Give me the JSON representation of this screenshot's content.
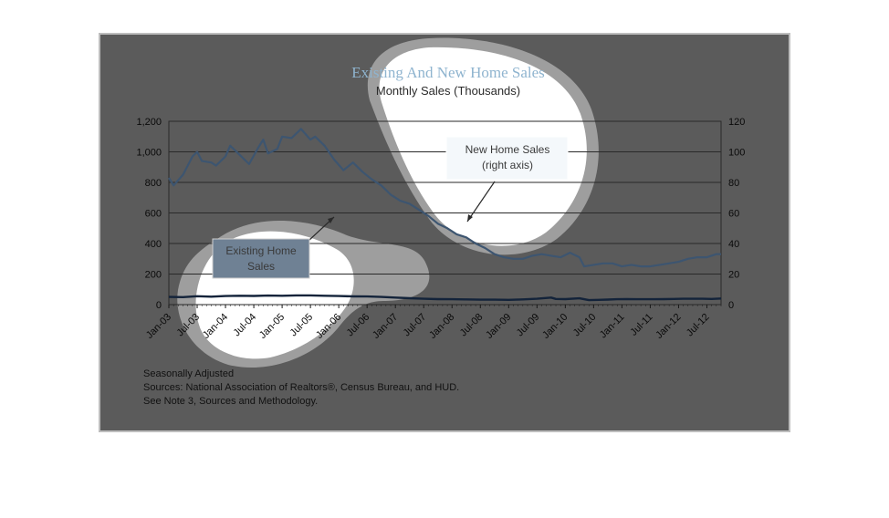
{
  "chart_data": {
    "type": "line",
    "title": "Existing And New Home Sales",
    "subtitle": "Monthly Sales (Thousands)",
    "x_tick_labels": [
      "Jan-03",
      "Jul-03",
      "Jan-04",
      "Jul-04",
      "Jan-05",
      "Jul-05",
      "Jan-06",
      "Jul-06",
      "Jan-07",
      "Jul-07",
      "Jan-08",
      "Jul-08",
      "Jan-09",
      "Jul-09",
      "Jan-10",
      "Jul-10",
      "Jan-11",
      "Jul-11",
      "Jan-12",
      "Jul-12"
    ],
    "y_left": {
      "min": 0,
      "max": 1200,
      "ticks": [
        "0",
        "200",
        "400",
        "600",
        "800",
        "1,000",
        "1,200"
      ]
    },
    "y_right": {
      "min": 0,
      "max": 120,
      "ticks": [
        "0",
        "20",
        "40",
        "60",
        "80",
        "100",
        "120"
      ]
    },
    "x_range_months": [
      0,
      117
    ],
    "grid": true,
    "series": [
      {
        "name": "Existing Home Sales",
        "axis": "left",
        "color": "#13233a",
        "points": [
          [
            0,
            50
          ],
          [
            3,
            49
          ],
          [
            6,
            55
          ],
          [
            9,
            52
          ],
          [
            12,
            56
          ],
          [
            15,
            58
          ],
          [
            18,
            57
          ],
          [
            21,
            59
          ],
          [
            24,
            58
          ],
          [
            27,
            60
          ],
          [
            30,
            60
          ],
          [
            33,
            58
          ],
          [
            36,
            56
          ],
          [
            39,
            54
          ],
          [
            42,
            53
          ],
          [
            45,
            50
          ],
          [
            48,
            46
          ],
          [
            51,
            42
          ],
          [
            54,
            38
          ],
          [
            57,
            36
          ],
          [
            60,
            35
          ],
          [
            63,
            34
          ],
          [
            66,
            32
          ],
          [
            69,
            32
          ],
          [
            72,
            31
          ],
          [
            75,
            34
          ],
          [
            78,
            38
          ],
          [
            81,
            46
          ],
          [
            82,
            37
          ],
          [
            84,
            36
          ],
          [
            87,
            41
          ],
          [
            89,
            29
          ],
          [
            91,
            31
          ],
          [
            93,
            33
          ],
          [
            95,
            35
          ],
          [
            97,
            36
          ],
          [
            99,
            35
          ],
          [
            101,
            35
          ],
          [
            103,
            35
          ],
          [
            105,
            36
          ],
          [
            107,
            37
          ],
          [
            109,
            38
          ],
          [
            111,
            38
          ],
          [
            113,
            38
          ],
          [
            115,
            37
          ],
          [
            117,
            40
          ]
        ]
      },
      {
        "name": "New Home Sales (right axis)",
        "axis": "right",
        "color": "#3d5570",
        "points": [
          [
            0,
            83
          ],
          [
            1,
            78
          ],
          [
            3,
            85
          ],
          [
            5,
            97
          ],
          [
            6,
            100
          ],
          [
            7,
            94
          ],
          [
            9,
            93
          ],
          [
            10,
            91
          ],
          [
            12,
            97
          ],
          [
            13,
            104
          ],
          [
            15,
            98
          ],
          [
            17,
            92
          ],
          [
            19,
            103
          ],
          [
            20,
            108
          ],
          [
            21,
            99
          ],
          [
            23,
            102
          ],
          [
            24,
            110
          ],
          [
            26,
            109
          ],
          [
            28,
            115
          ],
          [
            30,
            108
          ],
          [
            31,
            110
          ],
          [
            33,
            104
          ],
          [
            35,
            95
          ],
          [
            37,
            88
          ],
          [
            39,
            93
          ],
          [
            41,
            87
          ],
          [
            43,
            82
          ],
          [
            45,
            78
          ],
          [
            47,
            72
          ],
          [
            49,
            68
          ],
          [
            51,
            66
          ],
          [
            53,
            62
          ],
          [
            55,
            58
          ],
          [
            57,
            53
          ],
          [
            59,
            50
          ],
          [
            61,
            46
          ],
          [
            63,
            44
          ],
          [
            65,
            40
          ],
          [
            67,
            37
          ],
          [
            69,
            33
          ],
          [
            71,
            31
          ],
          [
            73,
            30
          ],
          [
            75,
            30
          ],
          [
            77,
            32
          ],
          [
            79,
            33
          ],
          [
            81,
            32
          ],
          [
            83,
            31
          ],
          [
            85,
            34
          ],
          [
            87,
            31
          ],
          [
            88,
            25
          ],
          [
            90,
            26
          ],
          [
            92,
            27
          ],
          [
            94,
            27
          ],
          [
            96,
            25
          ],
          [
            98,
            26
          ],
          [
            100,
            25
          ],
          [
            102,
            25
          ],
          [
            104,
            26
          ],
          [
            106,
            27
          ],
          [
            108,
            28
          ],
          [
            110,
            30
          ],
          [
            112,
            31
          ],
          [
            114,
            31
          ],
          [
            116,
            33
          ],
          [
            117,
            33
          ]
        ]
      }
    ],
    "annotations": [
      {
        "text_lines": [
          "New Home Sales",
          "(right axis)"
        ]
      },
      {
        "text_lines": [
          "Existing Home",
          "Sales"
        ]
      }
    ],
    "notes": [
      "Seasonally Adjusted",
      "Sources:  National Association of Realtors®, Census Bureau, and HUD.",
      "See Note 3, Sources and Methodology."
    ],
    "colors": {
      "panel": "#5b5b5b",
      "grid": "#2a2a2a",
      "blob": "#ffffff",
      "blob_shadow": "#9a9a9a",
      "callout_fill": "#f4f8fb",
      "callout_border": "#ffffff"
    }
  }
}
